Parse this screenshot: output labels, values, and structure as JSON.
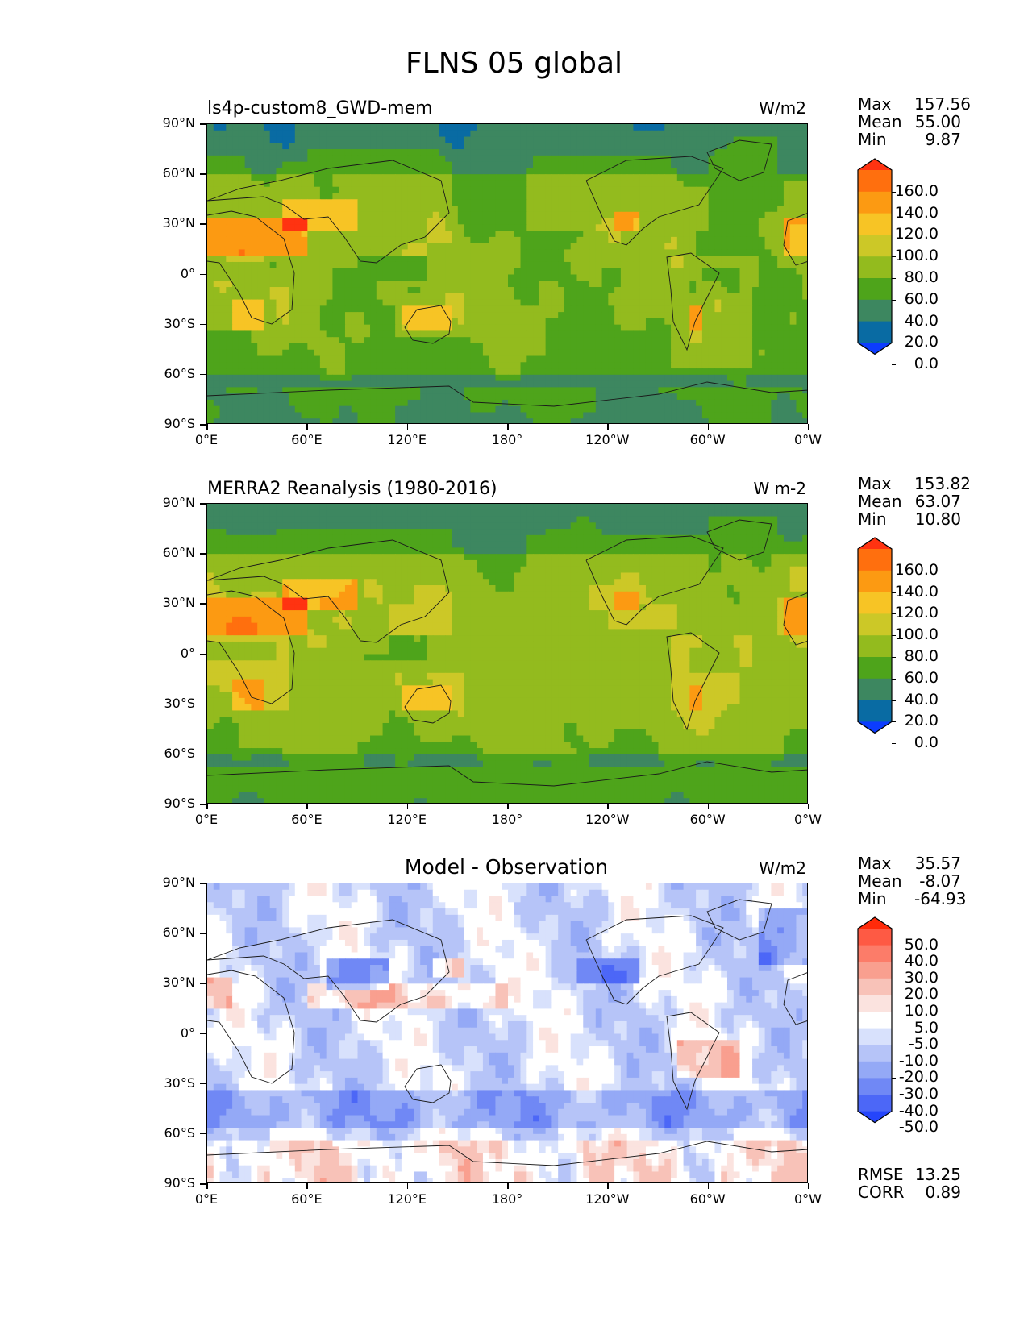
{
  "title": "FLNS 05 global",
  "panels": [
    {
      "id": "model",
      "title_left": "ls4p-custom8_GWD-mem",
      "title_center": "",
      "units": "W/m2",
      "stats": [
        {
          "key": "Max",
          "value": "157.56"
        },
        {
          "key": "Mean",
          "value": "55.00"
        },
        {
          "key": "Min",
          "value": "9.87"
        }
      ],
      "colorbar_labels": [
        "160.0",
        "140.0",
        "120.0",
        "100.0",
        "80.0",
        "60.0",
        "40.0",
        "20.0",
        "0.0"
      ],
      "colorbar_colors": [
        "#ff3311",
        "#ff6f0e",
        "#fc9a12",
        "#f7c425",
        "#ccc827",
        "#93bb1e",
        "#4ea41b",
        "#3d8760",
        "#096ba3",
        "#0c3cff"
      ],
      "extra_stats": []
    },
    {
      "id": "obs",
      "title_left": "MERRA2 Reanalysis (1980-2016)",
      "title_center": "",
      "units": "W m-2",
      "stats": [
        {
          "key": "Max",
          "value": "153.82"
        },
        {
          "key": "Mean",
          "value": "63.07"
        },
        {
          "key": "Min",
          "value": "10.80"
        }
      ],
      "colorbar_labels": [
        "160.0",
        "140.0",
        "120.0",
        "100.0",
        "80.0",
        "60.0",
        "40.0",
        "20.0",
        "0.0"
      ],
      "colorbar_colors": [
        "#ff3311",
        "#ff6f0e",
        "#fc9a12",
        "#f7c425",
        "#ccc827",
        "#93bb1e",
        "#4ea41b",
        "#3d8760",
        "#096ba3",
        "#0c3cff"
      ],
      "extra_stats": []
    },
    {
      "id": "diff",
      "title_left": "",
      "title_center": "Model - Observation",
      "units": "W/m2",
      "stats": [
        {
          "key": "Max",
          "value": "35.57"
        },
        {
          "key": "Mean",
          "value": "-8.07"
        },
        {
          "key": "Min",
          "value": "-64.93"
        }
      ],
      "colorbar_labels": [
        "50.0",
        "40.0",
        "30.0",
        "20.0",
        "10.0",
        "5.0",
        "-5.0",
        "-10.0",
        "-20.0",
        "-30.0",
        "-40.0",
        "-50.0"
      ],
      "colorbar_colors": [
        "#ff2a0a",
        "#fe5a44",
        "#fc7c69",
        "#f99f8f",
        "#f8c2b8",
        "#fbe3df",
        "#ffffff",
        "#d8e1fc",
        "#b6c4f8",
        "#94a9f6",
        "#7088f5",
        "#4c67f7",
        "#2545fb"
      ],
      "extra_stats": [
        {
          "key": "RMSE",
          "value": "13.25"
        },
        {
          "key": "CORR",
          "value": "0.89"
        }
      ]
    }
  ],
  "lat_ticks": [
    "90°N",
    "60°N",
    "30°N",
    "0°",
    "30°S",
    "60°S",
    "90°S"
  ],
  "lon_ticks": [
    "0°E",
    "60°E",
    "120°E",
    "180°",
    "120°W",
    "60°W",
    "0°W"
  ]
}
